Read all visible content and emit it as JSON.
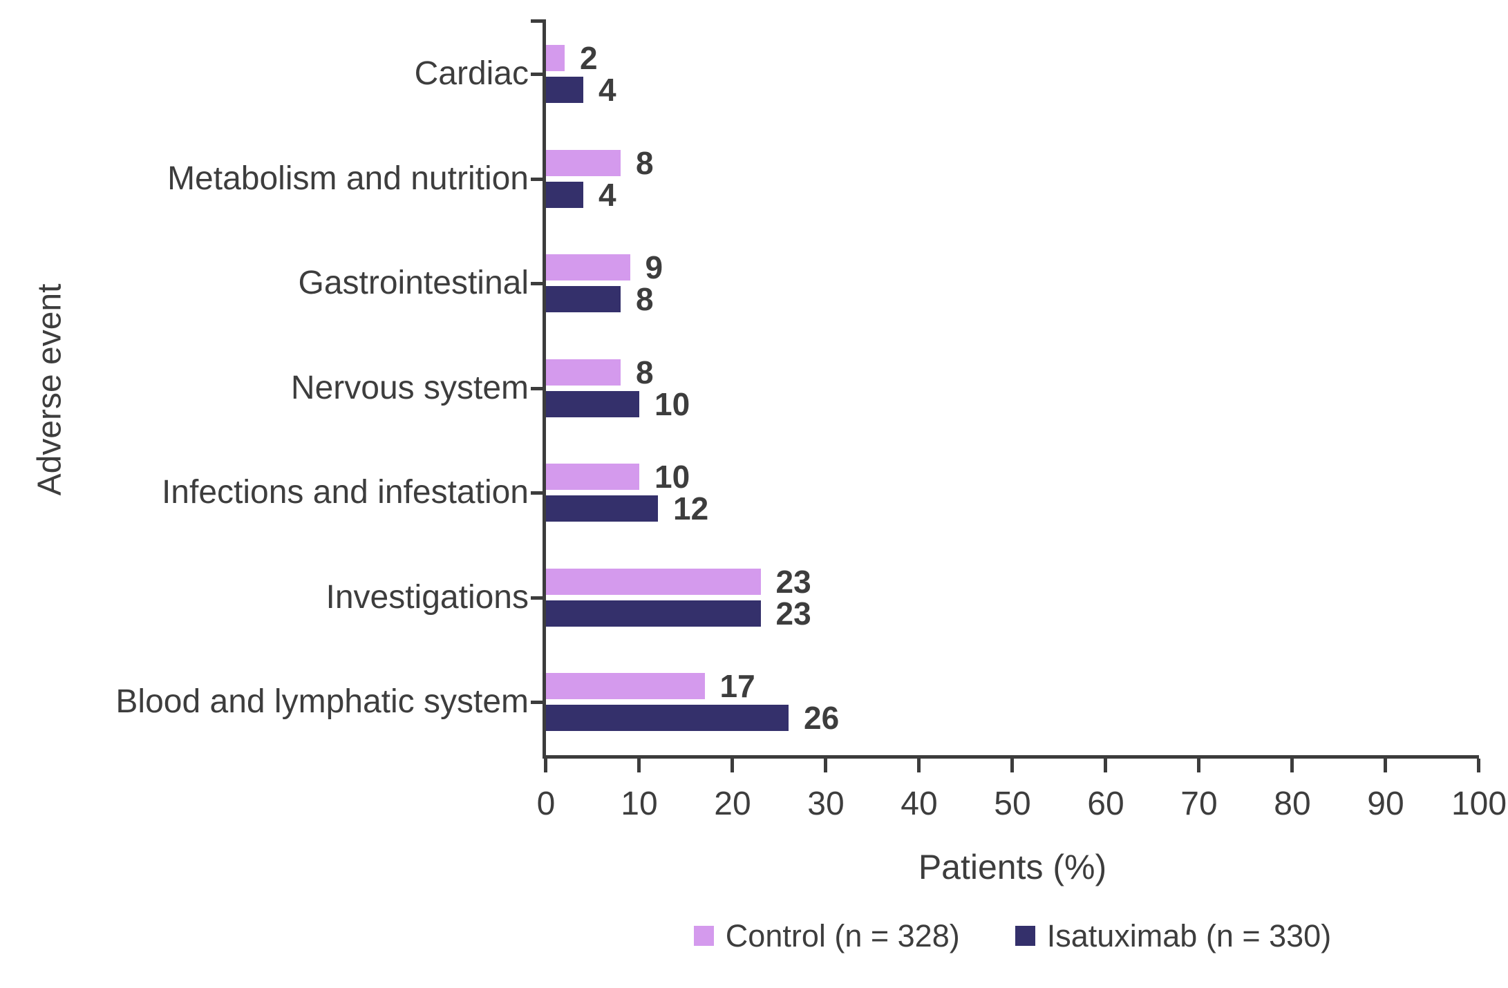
{
  "chart_data": {
    "type": "bar",
    "orientation": "horizontal",
    "title": "",
    "xlabel": "Patients (%)",
    "ylabel": "Adverse event",
    "xlim": [
      0,
      100
    ],
    "xticks": [
      0,
      10,
      20,
      30,
      40,
      50,
      60,
      70,
      80,
      90,
      100
    ],
    "grid": false,
    "value_labels": true,
    "legend_position": "bottom",
    "categories": [
      "Cardiac",
      "Metabolism and nutrition",
      "Gastrointestinal",
      "Nervous system",
      "Infections and infestation",
      "Investigations",
      "Blood and lymphatic system"
    ],
    "series": [
      {
        "name": "Control (n = 328)",
        "color": "#d49aed",
        "values": [
          2,
          8,
          9,
          8,
          10,
          23,
          17
        ]
      },
      {
        "name": "Isatuximab (n = 330)",
        "color": "#34306b",
        "values": [
          4,
          4,
          8,
          10,
          12,
          23,
          26
        ]
      }
    ],
    "axis_color": "#3c3c3c",
    "text_color": "#3d3d3d"
  }
}
